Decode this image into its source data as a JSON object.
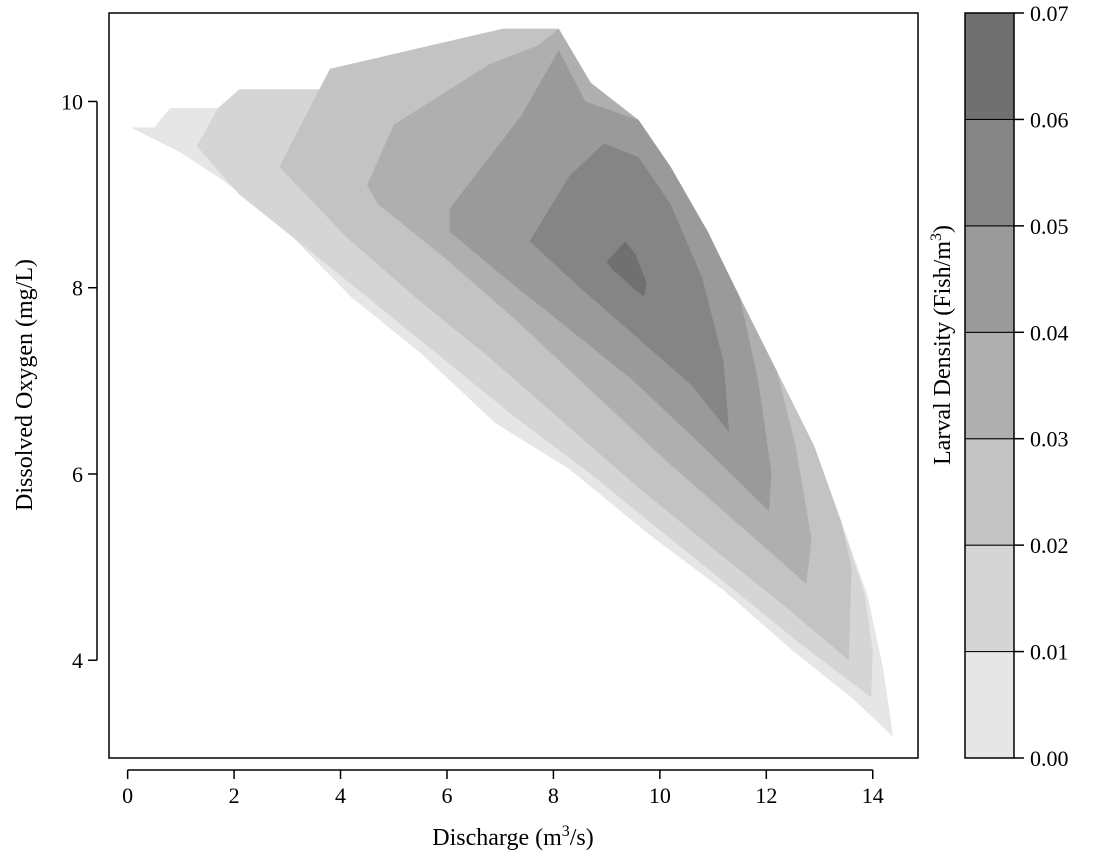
{
  "chart_data": {
    "type": "filled-contour",
    "xlabel": "Discharge (m³/s)",
    "xlabel_parts": {
      "before": "Discharge (m",
      "sup": "3",
      "after": "/s)"
    },
    "ylabel": "Dissolved Oxygen (mg/L)",
    "colorbar_label": "Larval Density (Fish/m³)",
    "colorbar_label_parts": {
      "before": "Larval Density (Fish/m",
      "sup": "3",
      "after": ")"
    },
    "xlim": [
      -0.35,
      14.85
    ],
    "ylim": [
      2.95,
      10.95
    ],
    "x_ticks": [
      0,
      2,
      4,
      6,
      8,
      10,
      12,
      14
    ],
    "y_ticks": [
      4,
      6,
      8,
      10
    ],
    "x_tick_labels": [
      "0",
      "2",
      "4",
      "6",
      "8",
      "10",
      "12",
      "14"
    ],
    "y_tick_labels": [
      "4",
      "6",
      "8",
      "10"
    ],
    "levels": [
      0.0,
      0.01,
      0.02,
      0.03,
      0.04,
      0.05,
      0.06,
      0.07
    ],
    "level_labels": [
      "0.00",
      "0.01",
      "0.02",
      "0.03",
      "0.04",
      "0.05",
      "0.06",
      "0.07"
    ],
    "band_colors": [
      "#e6e6e6",
      "#d5d5d5",
      "#c3c3c3",
      "#afafaf",
      "#9a9a9a",
      "#858585",
      "#707070"
    ],
    "bands": [
      {
        "range": [
          0.0,
          0.01
        ],
        "polygon": [
          [
            0.06,
            9.72
          ],
          [
            0.5,
            9.72
          ],
          [
            0.8,
            9.93
          ],
          [
            1.7,
            9.93
          ],
          [
            2.1,
            10.13
          ],
          [
            3.7,
            10.13
          ],
          [
            3.8,
            10.35
          ],
          [
            7.05,
            10.78
          ],
          [
            8.1,
            10.78
          ],
          [
            8.7,
            10.2
          ],
          [
            9.6,
            9.8
          ],
          [
            10.2,
            9.3
          ],
          [
            10.9,
            8.6
          ],
          [
            11.5,
            7.9
          ],
          [
            12.2,
            7.1
          ],
          [
            12.9,
            6.3
          ],
          [
            13.4,
            5.5
          ],
          [
            13.9,
            4.7
          ],
          [
            14.2,
            3.9
          ],
          [
            14.38,
            3.18
          ],
          [
            13.6,
            3.6
          ],
          [
            12.5,
            4.1
          ],
          [
            11.2,
            4.75
          ],
          [
            9.8,
            5.35
          ],
          [
            8.3,
            6.05
          ],
          [
            6.9,
            6.55
          ],
          [
            5.5,
            7.3
          ],
          [
            4.2,
            7.9
          ],
          [
            3.0,
            8.6
          ],
          [
            1.8,
            9.15
          ],
          [
            1.0,
            9.45
          ]
        ]
      },
      {
        "range": [
          0.01,
          0.02
        ],
        "polygon": [
          [
            1.3,
            9.52
          ],
          [
            1.7,
            9.93
          ],
          [
            2.1,
            10.13
          ],
          [
            3.7,
            10.13
          ],
          [
            3.8,
            10.35
          ],
          [
            7.05,
            10.78
          ],
          [
            8.1,
            10.78
          ],
          [
            8.7,
            10.2
          ],
          [
            9.6,
            9.8
          ],
          [
            10.2,
            9.3
          ],
          [
            10.9,
            8.6
          ],
          [
            11.5,
            7.9
          ],
          [
            12.2,
            7.1
          ],
          [
            12.9,
            6.3
          ],
          [
            13.4,
            5.5
          ],
          [
            13.85,
            4.7
          ],
          [
            14.0,
            4.1
          ],
          [
            13.97,
            3.6
          ],
          [
            12.7,
            4.15
          ],
          [
            11.4,
            4.75
          ],
          [
            10.1,
            5.35
          ],
          [
            8.7,
            6.0
          ],
          [
            7.3,
            6.6
          ],
          [
            5.9,
            7.25
          ],
          [
            4.5,
            7.9
          ],
          [
            3.2,
            8.5
          ],
          [
            2.1,
            9.0
          ]
        ]
      },
      {
        "range": [
          0.02,
          0.03
        ],
        "polygon": [
          [
            2.85,
            9.3
          ],
          [
            3.8,
            10.35
          ],
          [
            7.05,
            10.78
          ],
          [
            8.1,
            10.78
          ],
          [
            8.7,
            10.2
          ],
          [
            9.6,
            9.8
          ],
          [
            10.2,
            9.3
          ],
          [
            10.9,
            8.6
          ],
          [
            11.5,
            7.9
          ],
          [
            12.2,
            7.1
          ],
          [
            12.9,
            6.3
          ],
          [
            13.4,
            5.5
          ],
          [
            13.6,
            5.0
          ],
          [
            13.55,
            4.0
          ],
          [
            12.3,
            4.6
          ],
          [
            11.0,
            5.2
          ],
          [
            9.6,
            5.85
          ],
          [
            8.2,
            6.55
          ],
          [
            6.8,
            7.25
          ],
          [
            5.4,
            7.9
          ],
          [
            4.1,
            8.55
          ]
        ]
      },
      {
        "range": [
          0.03,
          0.04
        ],
        "polygon": [
          [
            4.5,
            9.1
          ],
          [
            5.0,
            9.75
          ],
          [
            6.8,
            10.4
          ],
          [
            7.7,
            10.6
          ],
          [
            8.1,
            10.78
          ],
          [
            8.7,
            10.2
          ],
          [
            9.6,
            9.8
          ],
          [
            10.2,
            9.3
          ],
          [
            10.9,
            8.6
          ],
          [
            11.5,
            7.9
          ],
          [
            12.2,
            7.1
          ],
          [
            12.55,
            6.3
          ],
          [
            12.85,
            5.3
          ],
          [
            12.75,
            4.82
          ],
          [
            11.5,
            5.45
          ],
          [
            10.1,
            6.15
          ],
          [
            8.7,
            6.9
          ],
          [
            7.3,
            7.65
          ],
          [
            6.0,
            8.3
          ],
          [
            4.7,
            8.9
          ]
        ]
      },
      {
        "range": [
          0.04,
          0.05
        ],
        "polygon": [
          [
            6.05,
            8.6
          ],
          [
            6.05,
            8.85
          ],
          [
            7.4,
            9.85
          ],
          [
            8.1,
            10.55
          ],
          [
            8.6,
            10.0
          ],
          [
            9.6,
            9.8
          ],
          [
            10.2,
            9.3
          ],
          [
            10.9,
            8.6
          ],
          [
            11.5,
            7.9
          ],
          [
            11.85,
            7.0
          ],
          [
            12.1,
            6.0
          ],
          [
            12.05,
            5.6
          ],
          [
            10.8,
            6.3
          ],
          [
            9.5,
            7.0
          ],
          [
            8.2,
            7.6
          ],
          [
            7.1,
            8.1
          ]
        ]
      },
      {
        "range": [
          0.05,
          0.06
        ],
        "polygon": [
          [
            7.55,
            8.5
          ],
          [
            8.3,
            9.2
          ],
          [
            8.95,
            9.55
          ],
          [
            9.6,
            9.4
          ],
          [
            10.2,
            8.9
          ],
          [
            10.8,
            8.1
          ],
          [
            11.2,
            7.2
          ],
          [
            11.3,
            6.45
          ],
          [
            10.6,
            6.95
          ],
          [
            9.6,
            7.45
          ],
          [
            8.5,
            8.0
          ]
        ]
      },
      {
        "range": [
          0.06,
          0.07
        ],
        "polygon": [
          [
            9.0,
            8.28
          ],
          [
            9.35,
            8.5
          ],
          [
            9.55,
            8.35
          ],
          [
            9.75,
            8.05
          ],
          [
            9.7,
            7.9
          ],
          [
            9.4,
            8.05
          ],
          [
            9.1,
            8.2
          ]
        ]
      }
    ]
  }
}
